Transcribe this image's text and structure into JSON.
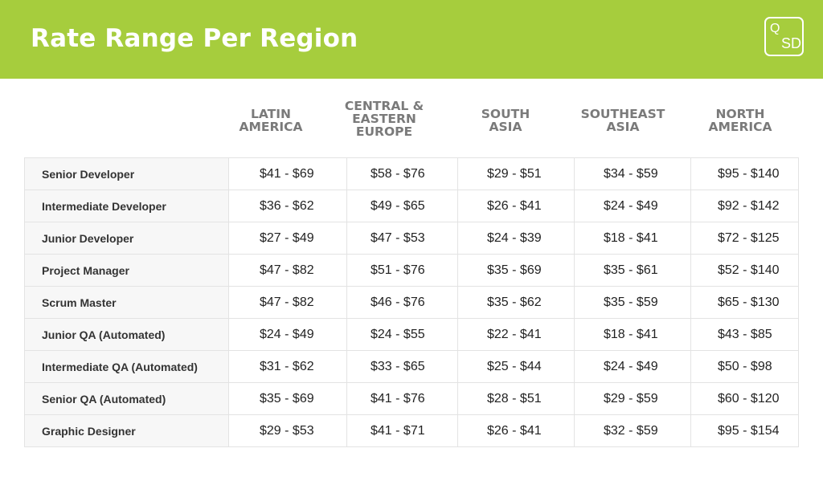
{
  "header": {
    "title": "Rate Range Per Region",
    "logo_top": "Q",
    "logo_bottom": "SD"
  },
  "columns": [
    "LATIN\nAMERICA",
    "CENTRAL &\nEASTERN\nEUROPE",
    "SOUTH\nASIA",
    "SOUTHEAST\nASIA",
    "NORTH\nAMERICA"
  ],
  "rows": [
    {
      "role": "Senior Developer",
      "rates": [
        "$41 - $69",
        "$58 - $76",
        "$29 - $51",
        "$34 - $59",
        "$95 - $140"
      ]
    },
    {
      "role": "Intermediate Developer",
      "rates": [
        "$36 - $62",
        "$49 - $65",
        "$26 - $41",
        "$24 - $49",
        "$92 - $142"
      ]
    },
    {
      "role": "Junior Developer",
      "rates": [
        "$27 - $49",
        "$47 - $53",
        "$24 - $39",
        "$18 - $41",
        "$72 - $125"
      ]
    },
    {
      "role": "Project Manager",
      "rates": [
        "$47 - $82",
        "$51 - $76",
        "$35 - $69",
        "$35 - $61",
        "$52 - $140"
      ]
    },
    {
      "role": "Scrum Master",
      "rates": [
        "$47 - $82",
        "$46 - $76",
        "$35 - $62",
        "$35 - $59",
        "$65 - $130"
      ]
    },
    {
      "role": "Junior QA (Automated)",
      "rates": [
        "$24 - $49",
        "$24 - $55",
        "$22 - $41",
        "$18 - $41",
        "$43 - $85"
      ]
    },
    {
      "role": "Intermediate QA (Automated)",
      "rates": [
        "$31 - $62",
        "$33 - $65",
        "$25 - $44",
        "$24 - $49",
        "$50 - $98"
      ]
    },
    {
      "role": "Senior QA (Automated)",
      "rates": [
        "$35 - $69",
        "$41 - $76",
        "$28 - $51",
        "$29 - $59",
        "$60 - $120"
      ]
    },
    {
      "role": "Graphic Designer",
      "rates": [
        "$29 - $53",
        "$41 - $71",
        "$26 - $41",
        "$32 - $59",
        "$95 - $154"
      ]
    }
  ],
  "colors": {
    "banner": "#a6cd3d",
    "header_text": "#7a7a7a"
  }
}
